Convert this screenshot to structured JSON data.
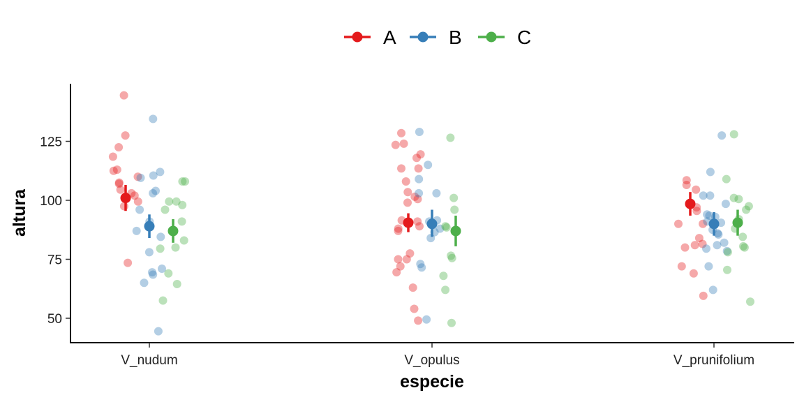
{
  "chart_data": {
    "type": "scatter",
    "xlabel": "especie",
    "ylabel": "altura",
    "categories": [
      "V_nudum",
      "V_opulus",
      "V_prunifolium"
    ],
    "ylim": [
      40,
      150
    ],
    "yticks": [
      50,
      75,
      100,
      125
    ],
    "legend_position": "top",
    "grid": false,
    "series": [
      {
        "name": "A",
        "color": "#e41a1c",
        "summary": [
          {
            "category": "V_nudum",
            "mean": 101,
            "low": 95.5,
            "high": 106.5
          },
          {
            "category": "V_opulus",
            "mean": 90.5,
            "low": 86.5,
            "high": 94.5
          },
          {
            "category": "V_prunifolium",
            "mean": 98.5,
            "low": 93.5,
            "high": 103.5
          }
        ],
        "points": [
          {
            "category": "V_nudum",
            "values": [
              144.5,
              127.5,
              122.5,
              118.5,
              113,
              112.5,
              110,
              107,
              107.5,
              104.5,
              103,
              102,
              99.5,
              97.5,
              73.5
            ]
          },
          {
            "category": "V_opulus",
            "values": [
              128.5,
              124,
              123.5,
              119.5,
              118,
              113.5,
              113.5,
              108,
              103.5,
              101.5,
              100.5,
              99,
              91.5,
              91,
              89,
              88,
              87,
              77.5,
              75,
              75,
              72,
              69.5,
              63,
              54,
              49
            ]
          },
          {
            "category": "V_prunifolium",
            "values": [
              108.5,
              106.5,
              104.5,
              97,
              95.5,
              90,
              90,
              84,
              81.5,
              81,
              80,
              72,
              69,
              59.5
            ]
          }
        ]
      },
      {
        "name": "B",
        "color": "#377eb8",
        "summary": [
          {
            "category": "V_nudum",
            "mean": 89,
            "low": 84,
            "high": 94
          },
          {
            "category": "V_opulus",
            "mean": 90,
            "low": 84.5,
            "high": 96
          },
          {
            "category": "V_prunifolium",
            "mean": 90,
            "low": 85,
            "high": 95
          }
        ],
        "points": [
          {
            "category": "V_nudum",
            "values": [
              134.5,
              112,
              110.5,
              109.5,
              104,
              103,
              96,
              91,
              87,
              84.5,
              78,
              71,
              69.5,
              68.5,
              65,
              44.5
            ]
          },
          {
            "category": "V_opulus",
            "values": [
              129,
              115,
              109,
              103,
              103,
              91.5,
              91,
              88,
              86.5,
              84,
              73,
              71.5,
              49.5
            ]
          },
          {
            "category": "V_prunifolium",
            "values": [
              127.5,
              112,
              102,
              102,
              98.5,
              94,
              93.5,
              93,
              91,
              90.5,
              87.5,
              86,
              85.5,
              82,
              81,
              79.5,
              78.5,
              72,
              62
            ]
          }
        ]
      },
      {
        "name": "C",
        "color": "#4daf4a",
        "summary": [
          {
            "category": "V_nudum",
            "mean": 87,
            "low": 82,
            "high": 92
          },
          {
            "category": "V_opulus",
            "mean": 87,
            "low": 80.5,
            "high": 93.5
          },
          {
            "category": "V_prunifolium",
            "mean": 90.5,
            "low": 85,
            "high": 96
          }
        ],
        "points": [
          {
            "category": "V_nudum",
            "values": [
              108,
              108,
              99.5,
              99.5,
              98,
              96,
              91,
              83,
              80,
              79.5,
              69,
              64.5,
              57.5
            ]
          },
          {
            "category": "V_opulus",
            "values": [
              126.5,
              101,
              96,
              89,
              88.5,
              76.5,
              75.5,
              68,
              62,
              48
            ]
          },
          {
            "category": "V_prunifolium",
            "values": [
              128,
              109,
              101,
              100.5,
              97.5,
              96,
              92,
              88,
              84.5,
              80.5,
              80,
              78,
              70.5,
              57
            ]
          }
        ]
      }
    ]
  }
}
